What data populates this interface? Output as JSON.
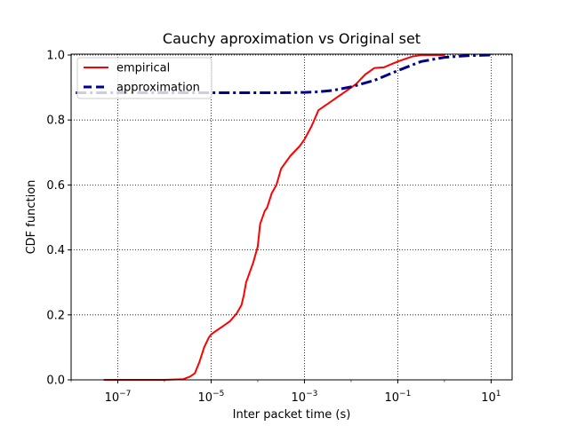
{
  "chart_data": {
    "type": "line",
    "title": "Cauchy aproximation vs Original set",
    "xlabel": "Inter packet time (s)",
    "ylabel": "CDF function",
    "xscale": "log",
    "xlim_exp": [
      -8.0,
      1.45
    ],
    "ylim": [
      0,
      1.0
    ],
    "x_ticks": [
      {
        "exp": -7,
        "base": "10",
        "power": "−7"
      },
      {
        "exp": -5,
        "base": "10",
        "power": "−5"
      },
      {
        "exp": -3,
        "base": "10",
        "power": "−3"
      },
      {
        "exp": -1,
        "base": "10",
        "power": "−1"
      },
      {
        "exp": 1,
        "base": "10",
        "power": "1"
      }
    ],
    "y_ticks": [
      "0.0",
      "0.2",
      "0.4",
      "0.6",
      "0.8",
      "1.0"
    ],
    "grid": true,
    "legend_position": "upper-left",
    "series": [
      {
        "name": "empirical",
        "color": "#ff0000",
        "style": "solid",
        "log10_x": [
          -7.3,
          -7.0,
          -6.5,
          -6.0,
          -5.6,
          -5.45,
          -5.35,
          -5.25,
          -5.15,
          -5.05,
          -5.0,
          -4.9,
          -4.8,
          -4.6,
          -4.45,
          -4.35,
          -4.3,
          -4.25,
          -4.2,
          -4.1,
          -4.0,
          -3.95,
          -3.85,
          -3.8,
          -3.7,
          -3.6,
          -3.5,
          -3.3,
          -3.1,
          -3.0,
          -2.85,
          -2.7,
          -2.55,
          -2.5,
          -2.3,
          -2.1,
          -1.9,
          -1.7,
          -1.5,
          -1.3,
          -1.25,
          -1.0,
          -0.7,
          -0.5,
          -0.3,
          0.0
        ],
        "y": [
          0.0,
          0.0,
          0.0,
          0.0,
          0.002,
          0.01,
          0.02,
          0.055,
          0.1,
          0.13,
          0.14,
          0.15,
          0.16,
          0.18,
          0.205,
          0.23,
          0.26,
          0.3,
          0.32,
          0.36,
          0.41,
          0.48,
          0.52,
          0.53,
          0.575,
          0.6,
          0.65,
          0.69,
          0.72,
          0.74,
          0.78,
          0.83,
          0.845,
          0.85,
          0.87,
          0.89,
          0.91,
          0.94,
          0.96,
          0.962,
          0.965,
          0.98,
          0.995,
          1.0,
          1.0,
          1.0
        ]
      },
      {
        "name": "approximation",
        "color": "#00008b",
        "style": "dashdot",
        "log10_x": [
          -7.9,
          -7.0,
          -6.0,
          -5.0,
          -4.0,
          -3.5,
          -3.0,
          -2.7,
          -2.4,
          -2.0,
          -1.5,
          -1.0,
          -0.5,
          0.0,
          0.5,
          1.0
        ],
        "y": [
          0.884,
          0.884,
          0.884,
          0.884,
          0.884,
          0.884,
          0.885,
          0.887,
          0.891,
          0.902,
          0.922,
          0.952,
          0.98,
          0.993,
          0.998,
          1.0
        ]
      }
    ]
  }
}
